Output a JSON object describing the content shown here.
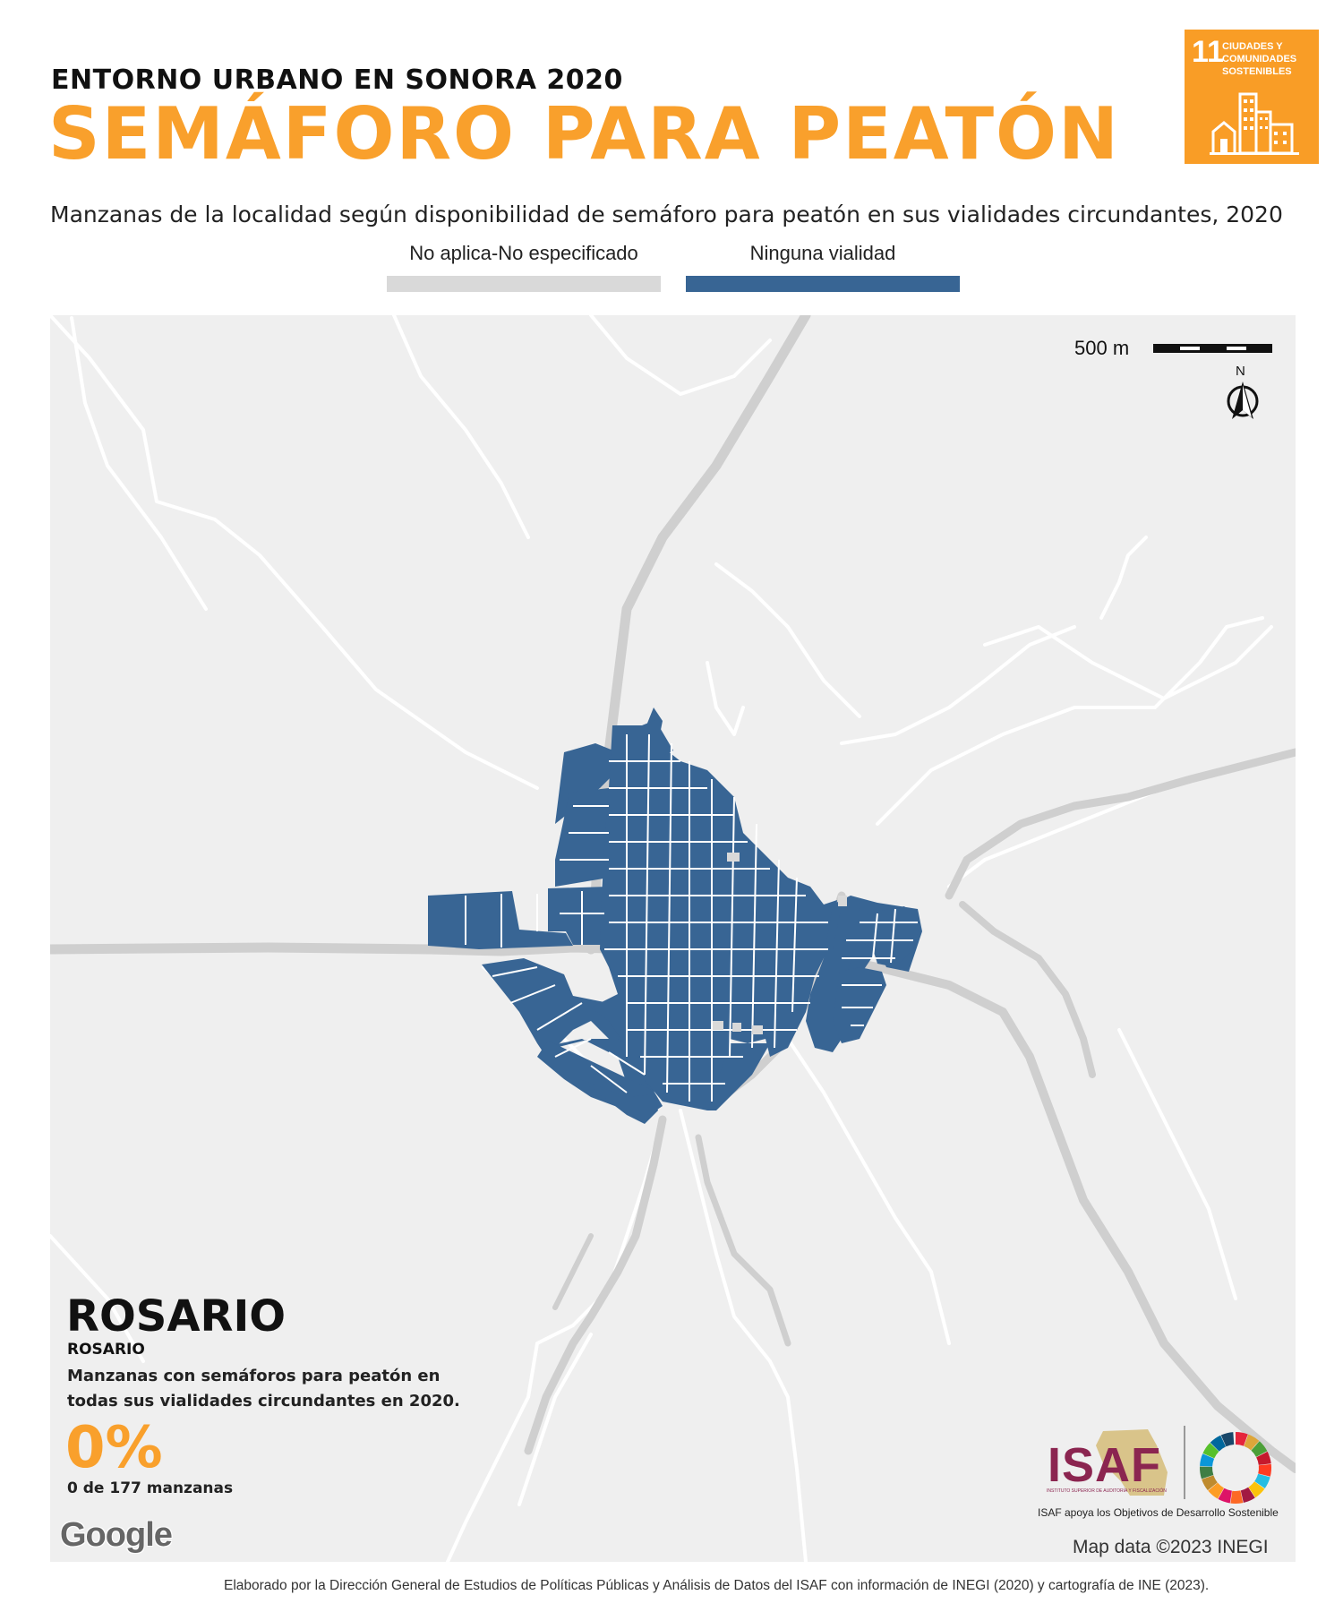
{
  "header": {
    "kicker": "ENTORNO URBANO EN SONORA 2020",
    "title": "SEMÁFORO PARA PEATÓN",
    "subtitle": "Manzanas de la localidad según disponibilidad de semáforo para peatón en sus vialidades circundantes, 2020"
  },
  "sdg_badge": {
    "number": "11",
    "text_line1": "CIUDADES Y",
    "text_line2": "COMUNIDADES",
    "text_line3": "SOSTENIBLES",
    "color": "#f99d26"
  },
  "legend": [
    {
      "label": "No aplica-No especificado",
      "color": "#d9d9d9"
    },
    {
      "label": "Ninguna vialidad",
      "color": "#386594"
    }
  ],
  "map": {
    "scale_label": "500 m",
    "north_label": "N",
    "background_color": "#efefef",
    "block_color": "#386594",
    "attribution": "Map data ©2023 INEGI",
    "provider_logo": "Google"
  },
  "locality": {
    "municipality": "ROSARIO",
    "name": "ROSARIO",
    "description": "Manzanas con semáforos para peatón en todas sus vialidades circundantes en 2020.",
    "percentage": "0%",
    "count_text": "0 de 177 manzanas"
  },
  "logos": {
    "isaf": "ISAF",
    "isaf_subtitle": "INSTITUTO SUPERIOR DE AUDITORÍA Y FISCALIZACIÓN",
    "isaf_caption": "ISAF apoya los Objetivos de Desarrollo Sostenible"
  },
  "footer": {
    "credit": "Elaborado por la Dirección General de Estudios de Políticas Públicas y Análisis de Datos del ISAF con información de INEGI (2020) y cartografía de INE (2023)."
  }
}
